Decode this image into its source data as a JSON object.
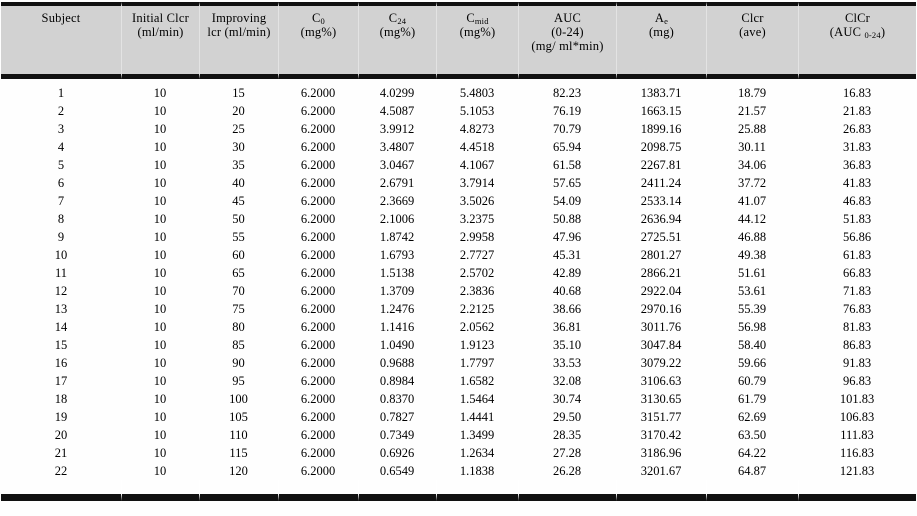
{
  "styles": {
    "header_bg": "#d2d2d2",
    "rule_color": "#111111",
    "text_color": "#000000"
  },
  "table": {
    "columns": [
      {
        "id": "subject",
        "header_lines": [
          {
            "pre": "Subject"
          }
        ]
      },
      {
        "id": "initial-clcr",
        "header_lines": [
          {
            "pre": "Initial Clcr"
          },
          {
            "pre": "(ml/min)"
          }
        ]
      },
      {
        "id": "improving-lcr",
        "header_lines": [
          {
            "pre": "Improving"
          },
          {
            "pre": "lcr (ml/min)"
          }
        ]
      },
      {
        "id": "c0",
        "header_lines": [
          {
            "pre": "C",
            "sub": "0"
          },
          {
            "pre": "(mg%)"
          }
        ]
      },
      {
        "id": "c24",
        "header_lines": [
          {
            "pre": "C",
            "sub": "24"
          },
          {
            "pre": "(mg%)"
          }
        ]
      },
      {
        "id": "cmid",
        "header_lines": [
          {
            "pre": "C",
            "sub": "mid"
          },
          {
            "pre": "(mg%)"
          }
        ]
      },
      {
        "id": "auc-0-24",
        "header_lines": [
          {
            "pre": "AUC"
          },
          {
            "pre": "(0-24)"
          },
          {
            "pre": "(mg/ ml*min)"
          }
        ]
      },
      {
        "id": "ae",
        "header_lines": [
          {
            "pre": "A",
            "sub": "e"
          },
          {
            "pre": "(mg)"
          }
        ]
      },
      {
        "id": "clcr-ave",
        "header_lines": [
          {
            "pre": "Clcr"
          },
          {
            "pre": "(ave)"
          }
        ]
      },
      {
        "id": "clcr-auc",
        "header_lines": [
          {
            "pre": "ClCr"
          },
          {
            "pre": "(AUC ",
            "sub": "0-24",
            "post": ")"
          }
        ]
      }
    ],
    "rows": [
      [
        "1",
        "10",
        "15",
        "6.2000",
        "4.0299",
        "5.4803",
        "82.23",
        "1383.71",
        "18.79",
        "16.83"
      ],
      [
        "2",
        "10",
        "20",
        "6.2000",
        "4.5087",
        "5.1053",
        "76.19",
        "1663.15",
        "21.57",
        "21.83"
      ],
      [
        "3",
        "10",
        "25",
        "6.2000",
        "3.9912",
        "4.8273",
        "70.79",
        "1899.16",
        "25.88",
        "26.83"
      ],
      [
        "4",
        "10",
        "30",
        "6.2000",
        "3.4807",
        "4.4518",
        "65.94",
        "2098.75",
        "30.11",
        "31.83"
      ],
      [
        "5",
        "10",
        "35",
        "6.2000",
        "3.0467",
        "4.1067",
        "61.58",
        "2267.81",
        "34.06",
        "36.83"
      ],
      [
        "6",
        "10",
        "40",
        "6.2000",
        "2.6791",
        "3.7914",
        "57.65",
        "2411.24",
        "37.72",
        "41.83"
      ],
      [
        "7",
        "10",
        "45",
        "6.2000",
        "2.3669",
        "3.5026",
        "54.09",
        "2533.14",
        "41.07",
        "46.83"
      ],
      [
        "8",
        "10",
        "50",
        "6.2000",
        "2.1006",
        "3.2375",
        "50.88",
        "2636.94",
        "44.12",
        "51.83"
      ],
      [
        "9",
        "10",
        "55",
        "6.2000",
        "1.8742",
        "2.9958",
        "47.96",
        "2725.51",
        "46.88",
        "56.86"
      ],
      [
        "10",
        "10",
        "60",
        "6.2000",
        "1.6793",
        "2.7727",
        "45.31",
        "2801.27",
        "49.38",
        "61.83"
      ],
      [
        "11",
        "10",
        "65",
        "6.2000",
        "1.5138",
        "2.5702",
        "42.89",
        "2866.21",
        "51.61",
        "66.83"
      ],
      [
        "12",
        "10",
        "70",
        "6.2000",
        "1.3709",
        "2.3836",
        "40.68",
        "2922.04",
        "53.61",
        "71.83"
      ],
      [
        "13",
        "10",
        "75",
        "6.2000",
        "1.2476",
        "2.2125",
        "38.66",
        "2970.16",
        "55.39",
        "76.83"
      ],
      [
        "14",
        "10",
        "80",
        "6.2000",
        "1.1416",
        "2.0562",
        "36.81",
        "3011.76",
        "56.98",
        "81.83"
      ],
      [
        "15",
        "10",
        "85",
        "6.2000",
        "1.0490",
        "1.9123",
        "35.10",
        "3047.84",
        "58.40",
        "86.83"
      ],
      [
        "16",
        "10",
        "90",
        "6.2000",
        "0.9688",
        "1.7797",
        "33.53",
        "3079.22",
        "59.66",
        "91.83"
      ],
      [
        "17",
        "10",
        "95",
        "6.2000",
        "0.8984",
        "1.6582",
        "32.08",
        "3106.63",
        "60.79",
        "96.83"
      ],
      [
        "18",
        "10",
        "100",
        "6.2000",
        "0.8370",
        "1.5464",
        "30.74",
        "3130.65",
        "61.79",
        "101.83"
      ],
      [
        "19",
        "10",
        "105",
        "6.2000",
        "0.7827",
        "1.4441",
        "29.50",
        "3151.77",
        "62.69",
        "106.83"
      ],
      [
        "20",
        "10",
        "110",
        "6.2000",
        "0.7349",
        "1.3499",
        "28.35",
        "3170.42",
        "63.50",
        "111.83"
      ],
      [
        "21",
        "10",
        "115",
        "6.2000",
        "0.6926",
        "1.2634",
        "27.28",
        "3186.96",
        "64.22",
        "116.83"
      ],
      [
        "22",
        "10",
        "120",
        "6.2000",
        "0.6549",
        "1.1838",
        "26.28",
        "3201.67",
        "64.87",
        "121.83"
      ]
    ]
  }
}
